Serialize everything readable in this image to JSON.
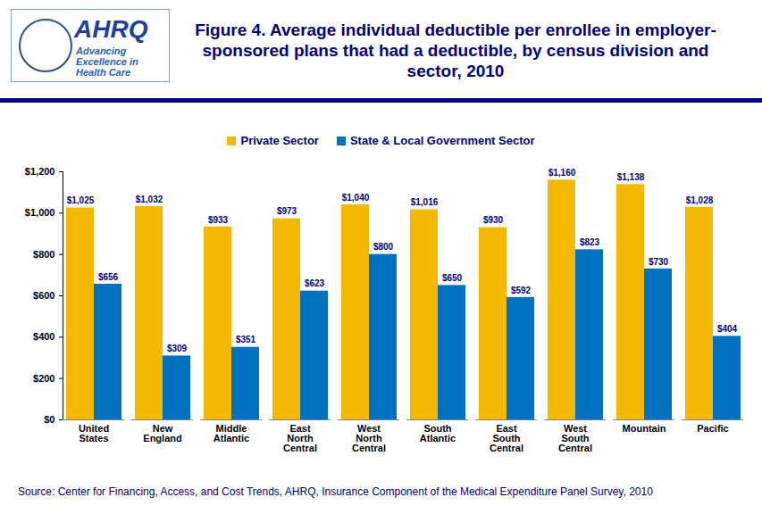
{
  "logo": {
    "name": "AHRQ",
    "tagline": "Advancing Excellence in Health Care"
  },
  "chart_data": {
    "type": "bar",
    "title": "Figure 4. Average individual deductible per enrollee in employer-sponsored plans that had a deductible, by census division and sector, 2010",
    "source": "Source: Center for Financing, Access, and Cost Trends, AHRQ, Insurance Component of the Medical Expenditure Panel Survey, 2010",
    "categories": [
      "United States",
      "New England",
      "Middle Atlantic",
      "East North Central",
      "West North Central",
      "South Atlantic",
      "East South Central",
      "West South Central",
      "Mountain",
      "Pacific"
    ],
    "series": [
      {
        "name": "Private Sector",
        "color": "#f5b800",
        "values": [
          1025,
          1032,
          933,
          973,
          1040,
          1016,
          930,
          1160,
          1138,
          1028
        ],
        "value_labels": [
          "$1,025",
          "$1,032",
          "$933",
          "$973",
          "$1,040",
          "$1,016",
          "$930",
          "$1,160",
          "$1,138",
          "$1,028"
        ]
      },
      {
        "name": "State & Local Government Sector",
        "color": "#0070c0",
        "values": [
          656,
          309,
          351,
          623,
          800,
          650,
          592,
          823,
          730,
          404
        ],
        "value_labels": [
          "$656",
          "$309",
          "$351",
          "$623",
          "$800",
          "$650",
          "$592",
          "$823",
          "$730",
          "$404"
        ]
      }
    ],
    "ylim": [
      0,
      1200
    ],
    "yticks": [
      {
        "value": 0,
        "label": "$0"
      },
      {
        "value": 200,
        "label": "$200"
      },
      {
        "value": 400,
        "label": "$400"
      },
      {
        "value": 600,
        "label": "$600"
      },
      {
        "value": 800,
        "label": "$800"
      },
      {
        "value": 1000,
        "label": "$1,000"
      },
      {
        "value": 1200,
        "label": "$1,200"
      }
    ],
    "grid": false,
    "legend": "top",
    "data_labels": true
  }
}
